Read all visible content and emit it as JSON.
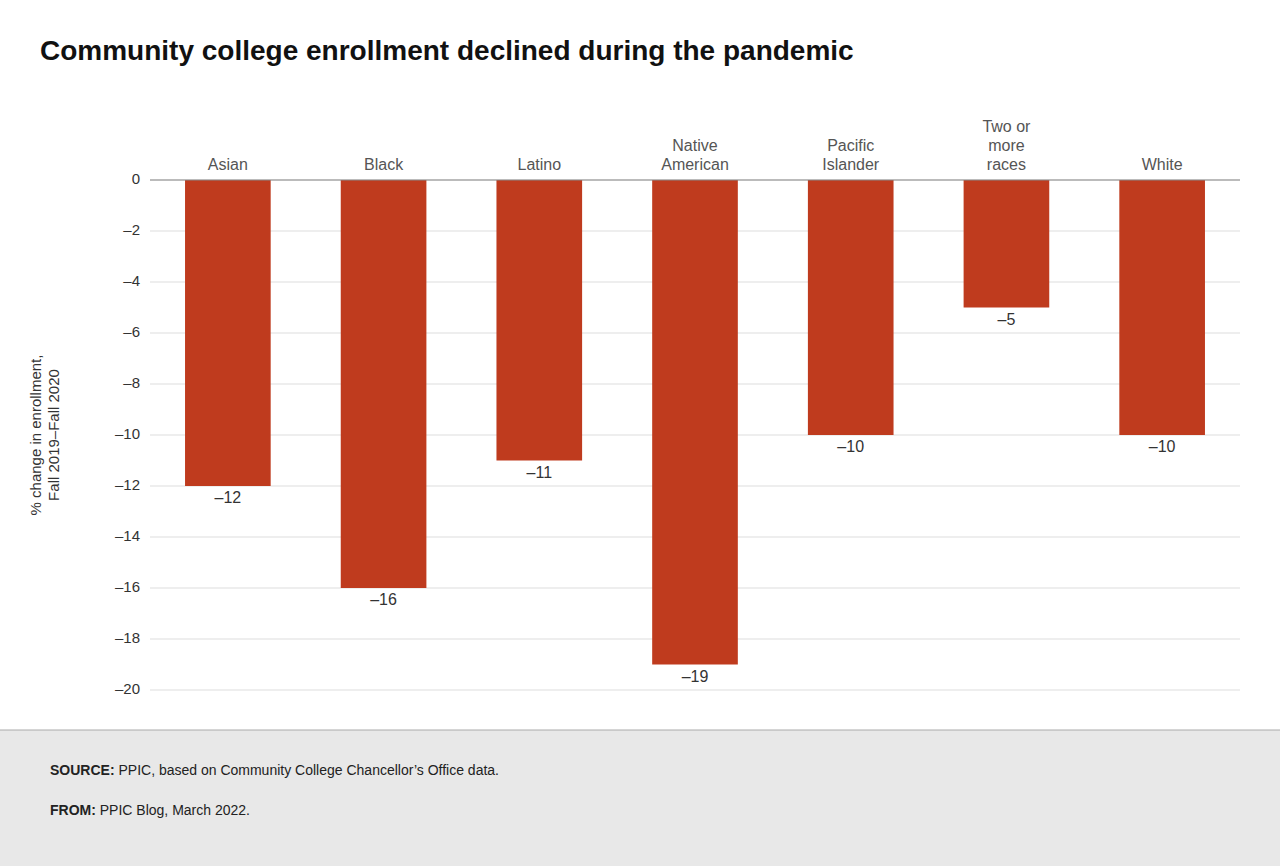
{
  "chart_data": {
    "type": "bar",
    "title": "Community college enrollment declined during the pandemic",
    "categories": [
      "Asian",
      "Black",
      "Latino",
      "Native\nAmerican",
      "Pacific\nIslander",
      "Two or\nmore\nraces",
      "White"
    ],
    "values": [
      -12,
      -16,
      -11,
      -19,
      -10,
      -5,
      -10
    ],
    "value_labels": [
      "–12",
      "–16",
      "–11",
      "–19",
      "–10",
      "–5",
      "–10"
    ],
    "data_labels": true,
    "color": "#bf3b1e",
    "ylabel": "% change in enrollment,\nFall 2019–Fall 2020",
    "ylim": [
      -20,
      0
    ],
    "yticks": [
      0,
      {
        "value": -2,
        "label": "–2"
      },
      {
        "value": -4,
        "label": "–4"
      },
      {
        "value": -6,
        "label": "–6"
      },
      {
        "value": -8,
        "label": "–8"
      },
      {
        "value": -10,
        "label": "–10"
      },
      {
        "value": -12,
        "label": "–12"
      },
      {
        "value": -14,
        "label": "–14"
      },
      {
        "value": -16,
        "label": "–16"
      },
      {
        "value": -18,
        "label": "–18"
      },
      {
        "value": -20,
        "label": "–20"
      }
    ],
    "grid": true,
    "annotations": [
      "SOURCE: PPIC, based on Community College Chancellor’s Office data.",
      "FROM: PPIC Blog, March 2022."
    ]
  }
}
